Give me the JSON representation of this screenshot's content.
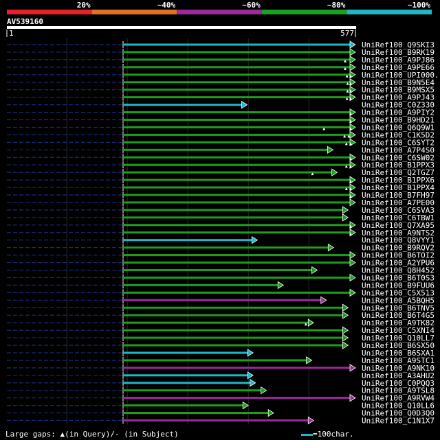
{
  "chart_data": {
    "type": "sequence-alignment-overview",
    "query_id": "AV539160",
    "query_range": [
      1,
      577
    ],
    "identity_legend": [
      {
        "label": "20%",
        "color": "#e8202a"
      },
      {
        "label": "~40%",
        "color": "#e2731d"
      },
      {
        "label": "~60%",
        "color": "#9b2a9b"
      },
      {
        "label": "~80%",
        "color": "#1aa01a"
      },
      {
        "label": "~100%",
        "color": "#1cb8c8"
      }
    ],
    "scale_note": "=100char.",
    "gap_legend": {
      "prefix": "Large gaps:",
      "query_part": "(in Query)/",
      "subject_part": "(in Subject)"
    },
    "hits": [
      {
        "name": "UniRef100_Q9SKI3",
        "start": 193,
        "end": 577,
        "color": "cyan",
        "gaps": []
      },
      {
        "name": "UniRef100_B9RK19",
        "start": 193,
        "end": 577,
        "color": "green",
        "gaps": []
      },
      {
        "name": "UniRef100_A9PJ86",
        "start": 193,
        "end": 577,
        "color": "green",
        "gaps": [
          560
        ]
      },
      {
        "name": "UniRef100_A9PE66",
        "start": 193,
        "end": 577,
        "color": "green",
        "gaps": [
          560
        ]
      },
      {
        "name": "UniRef100_UPI000..",
        "start": 193,
        "end": 577,
        "color": "green",
        "gaps": [
          563,
          569
        ]
      },
      {
        "name": "UniRef100_B9N5E4",
        "start": 193,
        "end": 577,
        "color": "green",
        "gaps": [
          564,
          569
        ]
      },
      {
        "name": "UniRef100_B9MSX5",
        "start": 193,
        "end": 577,
        "color": "green",
        "gaps": [
          564,
          569
        ]
      },
      {
        "name": "UniRef100_A9PJ43",
        "start": 193,
        "end": 577,
        "color": "green",
        "gaps": [
          563,
          569
        ]
      },
      {
        "name": "UniRef100_C0Z330",
        "start": 193,
        "end": 398,
        "color": "cyan",
        "gaps": []
      },
      {
        "name": "UniRef100_A9PIY2",
        "start": 193,
        "end": 577,
        "color": "green",
        "gaps": [
          569
        ]
      },
      {
        "name": "UniRef100_B9HD21",
        "start": 193,
        "end": 577,
        "color": "green",
        "gaps": [
          569
        ]
      },
      {
        "name": "UniRef100_Q6Q9W1",
        "start": 193,
        "end": 577,
        "color": "green",
        "gaps": [
          525,
          569
        ]
      },
      {
        "name": "UniRef100_C1K5D2",
        "start": 193,
        "end": 577,
        "color": "green",
        "gaps": [
          559,
          566
        ]
      },
      {
        "name": "UniRef100_C6SYT2",
        "start": 193,
        "end": 577,
        "color": "green",
        "gaps": [
          562,
          569
        ]
      },
      {
        "name": "UniRef100_A7P4S0",
        "start": 193,
        "end": 540,
        "color": "green",
        "gaps": []
      },
      {
        "name": "UniRef100_C6SW02",
        "start": 193,
        "end": 577,
        "color": "green",
        "gaps": [
          569
        ]
      },
      {
        "name": "UniRef100_B1PPX3",
        "start": 193,
        "end": 577,
        "color": "green",
        "gaps": [
          562,
          569
        ]
      },
      {
        "name": "UniRef100_Q2TGZ7",
        "start": 193,
        "end": 547,
        "color": "green",
        "gaps": [
          506
        ]
      },
      {
        "name": "UniRef100_B1PPX6",
        "start": 193,
        "end": 577,
        "color": "green",
        "gaps": [
          569
        ]
      },
      {
        "name": "UniRef100_B1PPX4",
        "start": 193,
        "end": 577,
        "color": "green",
        "gaps": [
          562,
          569
        ]
      },
      {
        "name": "UniRef100_B7FH97",
        "start": 193,
        "end": 577,
        "color": "green",
        "gaps": [
          569
        ]
      },
      {
        "name": "UniRef100_A7PE00",
        "start": 193,
        "end": 577,
        "color": "green",
        "gaps": []
      },
      {
        "name": "UniRef100_C6SVA3",
        "start": 193,
        "end": 565,
        "color": "green",
        "gaps": []
      },
      {
        "name": "UniRef100_C6TBW1",
        "start": 193,
        "end": 565,
        "color": "green",
        "gaps": []
      },
      {
        "name": "UniRef100_Q7XA95",
        "start": 193,
        "end": 577,
        "color": "green",
        "gaps": [
          569
        ]
      },
      {
        "name": "UniRef100_A9NTS2",
        "start": 193,
        "end": 577,
        "color": "green",
        "gaps": [
          569
        ]
      },
      {
        "name": "UniRef100_Q8VYY1",
        "start": 193,
        "end": 415,
        "color": "cyan",
        "gaps": []
      },
      {
        "name": "UniRef100_B9RQV2",
        "start": 193,
        "end": 541,
        "color": "green",
        "gaps": []
      },
      {
        "name": "UniRef100_B6TOI2",
        "start": 193,
        "end": 577,
        "color": "green",
        "gaps": []
      },
      {
        "name": "UniRef100_A2YPU6",
        "start": 193,
        "end": 577,
        "color": "green",
        "gaps": []
      },
      {
        "name": "UniRef100_Q8H452",
        "start": 193,
        "end": 514,
        "color": "green",
        "gaps": []
      },
      {
        "name": "UniRef100_B6T0S3",
        "start": 193,
        "end": 577,
        "color": "green",
        "gaps": []
      },
      {
        "name": "UniRef100_B9FUU6",
        "start": 193,
        "end": 458,
        "color": "green",
        "gaps": []
      },
      {
        "name": "UniRef100_C5X513",
        "start": 193,
        "end": 577,
        "color": "green",
        "gaps": []
      },
      {
        "name": "UniRef100_A5BQH5",
        "start": 193,
        "end": 529,
        "color": "purple",
        "gaps": []
      },
      {
        "name": "UniRef100_B6TNV5",
        "start": 193,
        "end": 565,
        "color": "green",
        "gaps": []
      },
      {
        "name": "UniRef100_B6T4G5",
        "start": 193,
        "end": 565,
        "color": "green",
        "gaps": []
      },
      {
        "name": "UniRef100_A9TK82",
        "start": 193,
        "end": 508,
        "color": "green",
        "gaps": [
          495
        ]
      },
      {
        "name": "UniRef100_C5XNI4",
        "start": 193,
        "end": 565,
        "color": "green",
        "gaps": []
      },
      {
        "name": "UniRef100_Q10LL7",
        "start": 193,
        "end": 565,
        "color": "green",
        "gaps": []
      },
      {
        "name": "UniRef100_B6SX50",
        "start": 193,
        "end": 565,
        "color": "green",
        "gaps": []
      },
      {
        "name": "UniRef100_B6SXA1",
        "start": 193,
        "end": 408,
        "color": "cyan",
        "gaps": []
      },
      {
        "name": "UniRef100_A9STC1",
        "start": 193,
        "end": 505,
        "color": "green",
        "gaps": []
      },
      {
        "name": "UniRef100_A9NK10",
        "start": 193,
        "end": 577,
        "color": "purple",
        "gaps": []
      },
      {
        "name": "UniRef100_A3AHU2",
        "start": 193,
        "end": 408,
        "color": "cyan",
        "gaps": []
      },
      {
        "name": "UniRef100_C0PQQ3",
        "start": 193,
        "end": 412,
        "color": "cyan",
        "gaps": []
      },
      {
        "name": "UniRef100_A9TSL8",
        "start": 193,
        "end": 430,
        "color": "green",
        "gaps": []
      },
      {
        "name": "UniRef100_A9RVW4",
        "start": 193,
        "end": 577,
        "color": "purple",
        "gaps": []
      },
      {
        "name": "UniRef100_Q10LL6",
        "start": 193,
        "end": 400,
        "color": "green",
        "gaps": []
      },
      {
        "name": "UniRef100_Q0D3Q0",
        "start": 193,
        "end": 442,
        "color": "green",
        "gaps": []
      },
      {
        "name": "UniRef100_C1N1X7",
        "start": 193,
        "end": 508,
        "color": "purple",
        "gaps": []
      }
    ]
  }
}
